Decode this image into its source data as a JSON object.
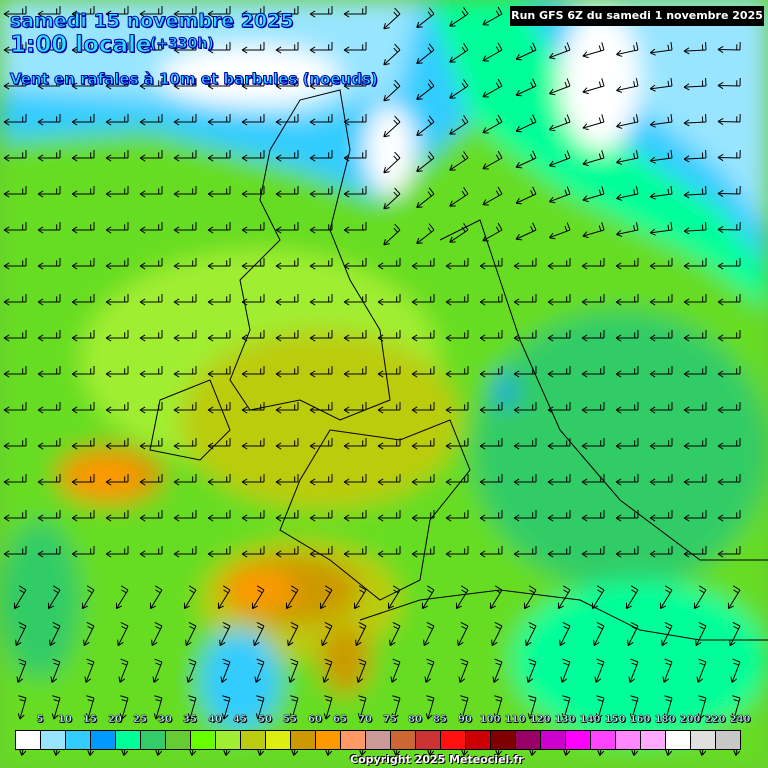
{
  "header": {
    "date": "samedi 15 novembre 2025",
    "time": "1:00 locale",
    "lead": "(+330h)",
    "parameter": "Vent en rafales à 10m et barbules (noeuds)"
  },
  "run_label": "Run GFS 6Z du samedi 1 novembre 2025",
  "legend": {
    "labels": [
      "5",
      "10",
      "15",
      "20",
      "25",
      "30",
      "35",
      "40",
      "45",
      "50",
      "55",
      "60",
      "65",
      "70",
      "75",
      "80",
      "85",
      "90",
      "100",
      "110",
      "120",
      "130",
      "140",
      "150",
      "160",
      "180",
      "200",
      "220",
      "240"
    ],
    "colors": [
      "#ffffff",
      "#99e5ff",
      "#33ccff",
      "#0099ff",
      "#00ff99",
      "#33cc66",
      "#66cc33",
      "#66ff00",
      "#a0ee33",
      "#bbcc11",
      "#ddee11",
      "#cc9900",
      "#ff9900",
      "#ff9966",
      "#cc9999",
      "#cc6633",
      "#cc3333",
      "#ff1111",
      "#cc0000",
      "#800000",
      "#990066",
      "#cc00cc",
      "#ff00ff",
      "#ff44ff",
      "#ff88ff",
      "#ffaaff",
      "#ffffff",
      "#e0e0e0",
      "#c8c8c8"
    ]
  },
  "copyright": "Copyright 2025 Meteociel.fr"
}
